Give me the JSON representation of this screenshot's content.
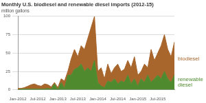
{
  "chart_data": {
    "type": "area",
    "title": "Monthly U.S. biodiesel and renewable diesel imports (2012-15)",
    "subtitle": "million gallons",
    "categories": [
      "Jan-2012",
      null,
      null,
      null,
      null,
      null,
      "Jul-2012",
      null,
      null,
      null,
      null,
      null,
      "Jan-2013",
      null,
      null,
      null,
      null,
      null,
      "Jul-2013",
      null,
      null,
      null,
      null,
      null,
      "Jan-2014",
      null,
      null,
      null,
      null,
      null,
      "Jul-2014",
      null,
      null,
      null,
      null,
      null,
      "Jan-2015",
      null,
      null,
      null,
      null,
      null,
      "Jul-2015",
      null,
      null,
      null,
      null,
      null
    ],
    "series": [
      {
        "name": "renewable diesel",
        "color": "#4f8a2f",
        "values": [
          0,
          1,
          1,
          1,
          1,
          1,
          1,
          1,
          1,
          2,
          1,
          8,
          0,
          10,
          2,
          20,
          20,
          28,
          30,
          35,
          25,
          30,
          25,
          40,
          10,
          5,
          3,
          12,
          10,
          15,
          8,
          12,
          10,
          20,
          8,
          15,
          5,
          15,
          10,
          20,
          10,
          15,
          20,
          15,
          25,
          15,
          10,
          20
        ]
      },
      {
        "name": "biodiesel",
        "color": "#a8652c",
        "values": [
          2,
          1,
          2,
          4,
          6,
          7,
          5,
          4,
          7,
          5,
          3,
          2,
          3,
          5,
          10,
          5,
          22,
          27,
          15,
          25,
          30,
          40,
          60,
          60,
          15,
          25,
          12,
          23,
          12,
          15,
          27,
          13,
          18,
          20,
          22,
          30,
          15,
          10,
          25,
          10,
          45,
          25,
          30,
          45,
          50,
          40,
          35,
          45
        ]
      }
    ],
    "stacked": true,
    "ylim": [
      0,
      100
    ],
    "yticks": [
      0,
      25,
      50,
      75,
      100
    ],
    "grid": true
  }
}
